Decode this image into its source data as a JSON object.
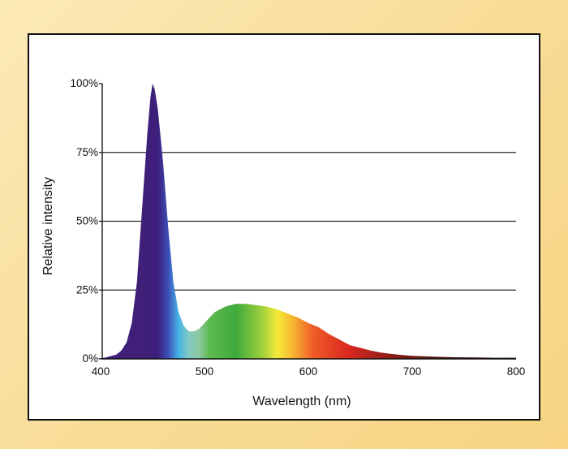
{
  "chart_data": {
    "type": "area",
    "title": "",
    "xlabel": "Wavelength (nm)",
    "ylabel": "Relative intensity",
    "xlim": [
      400,
      800
    ],
    "ylim": [
      0,
      100
    ],
    "x_ticks": [
      {
        "value": 400,
        "label": "400"
      },
      {
        "value": 500,
        "label": "500"
      },
      {
        "value": 600,
        "label": "600"
      },
      {
        "value": 700,
        "label": "700"
      },
      {
        "value": 800,
        "label": "800"
      }
    ],
    "y_ticks": [
      {
        "value": 0,
        "label": "0%"
      },
      {
        "value": 25,
        "label": "25%"
      },
      {
        "value": 50,
        "label": "50%"
      },
      {
        "value": 75,
        "label": "75%"
      },
      {
        "value": 100,
        "label": "100%"
      }
    ],
    "gridlines_y": [
      25,
      50,
      75
    ],
    "grid": true,
    "series": [
      {
        "x": [
          380,
          395,
          405,
          415,
          420,
          425,
          430,
          435,
          440,
          445,
          448,
          450,
          452,
          455,
          460,
          465,
          470,
          475,
          480,
          485,
          490,
          495,
          500,
          510,
          520,
          530,
          540,
          550,
          560,
          570,
          580,
          590,
          600,
          610,
          620,
          630,
          640,
          650,
          660,
          670,
          680,
          690,
          700,
          720,
          740,
          760,
          780,
          800
        ],
        "y": [
          0,
          0,
          0.5,
          1.5,
          3,
          6,
          13,
          28,
          55,
          82,
          95,
          100,
          98,
          91,
          72,
          48,
          28,
          17,
          12,
          10,
          10,
          11,
          13,
          17,
          19,
          20,
          20,
          19.5,
          19,
          18,
          16.5,
          15,
          13,
          11.5,
          9,
          7,
          5,
          4,
          3,
          2.3,
          1.8,
          1.4,
          1.1,
          0.8,
          0.6,
          0.5,
          0.4,
          0.4
        ]
      }
    ],
    "fill_colors": [
      {
        "wavelength": 400,
        "color": "#3f1f77"
      },
      {
        "wavelength": 440,
        "color": "#3f1f77"
      },
      {
        "wavelength": 455,
        "color": "#3d1f7c"
      },
      {
        "wavelength": 465,
        "color": "#3b4fb8"
      },
      {
        "wavelength": 475,
        "color": "#45b4e6"
      },
      {
        "wavelength": 485,
        "color": "#83c9c2"
      },
      {
        "wavelength": 495,
        "color": "#8bc79e"
      },
      {
        "wavelength": 505,
        "color": "#5dbb4e"
      },
      {
        "wavelength": 530,
        "color": "#3eaa3c"
      },
      {
        "wavelength": 555,
        "color": "#9bcf3c"
      },
      {
        "wavelength": 570,
        "color": "#f4ea3a"
      },
      {
        "wavelength": 585,
        "color": "#f7b531"
      },
      {
        "wavelength": 605,
        "color": "#ef5b27"
      },
      {
        "wavelength": 640,
        "color": "#d7261f"
      },
      {
        "wavelength": 680,
        "color": "#8c1c16"
      },
      {
        "wavelength": 730,
        "color": "#4a1410"
      },
      {
        "wavelength": 800,
        "color": "#1a0b08"
      }
    ],
    "gridline_color": "#2a2a2a",
    "background": "#ffffff"
  }
}
